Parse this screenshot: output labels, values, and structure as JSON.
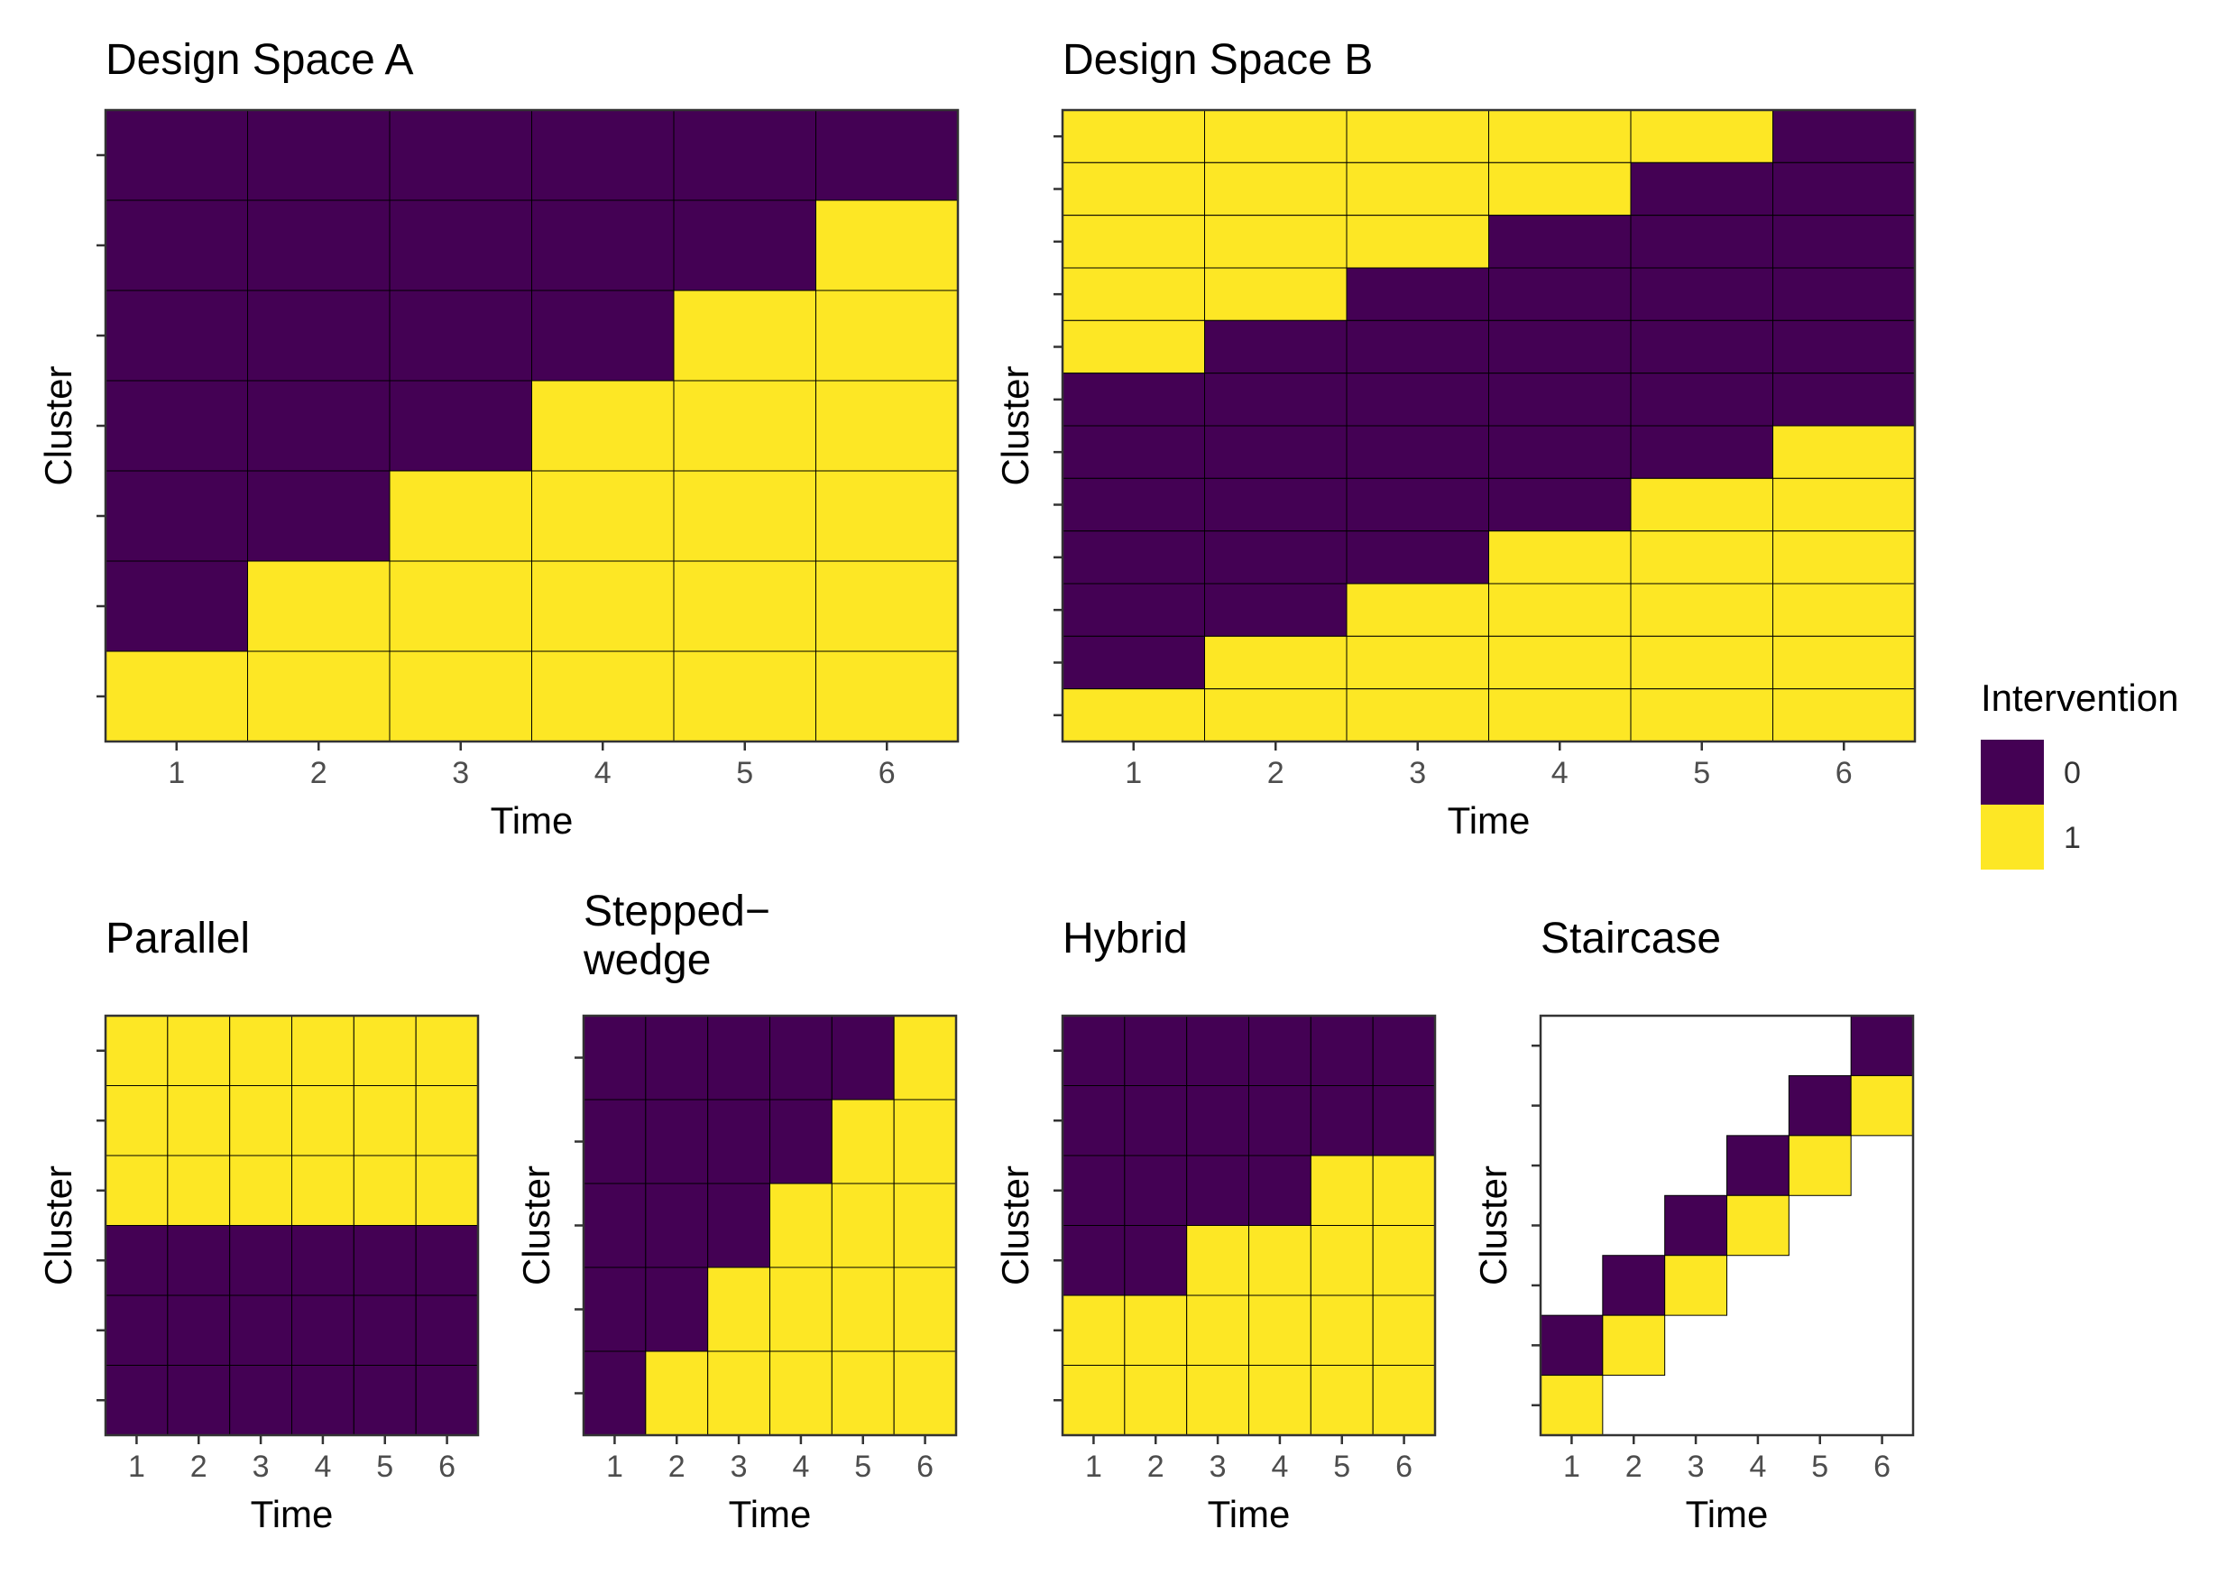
{
  "figure": {
    "legend": {
      "title": "Intervention",
      "items": [
        {
          "label": "0",
          "color": "#440154"
        },
        {
          "label": "1",
          "color": "#FDE725"
        }
      ]
    }
  },
  "chart_data": [
    {
      "type": "heatmap",
      "title": "Design Space A",
      "xlabel": "Time",
      "ylabel": "Cluster",
      "x": [
        "1",
        "2",
        "3",
        "4",
        "5",
        "6"
      ],
      "rows_top_to_bottom": [
        [
          0,
          0,
          0,
          0,
          0,
          0
        ],
        [
          0,
          0,
          0,
          0,
          0,
          1
        ],
        [
          0,
          0,
          0,
          0,
          1,
          1
        ],
        [
          0,
          0,
          0,
          1,
          1,
          1
        ],
        [
          0,
          0,
          1,
          1,
          1,
          1
        ],
        [
          0,
          1,
          1,
          1,
          1,
          1
        ],
        [
          1,
          1,
          1,
          1,
          1,
          1
        ]
      ]
    },
    {
      "type": "heatmap",
      "title": "Design Space B",
      "xlabel": "Time",
      "ylabel": "Cluster",
      "x": [
        "1",
        "2",
        "3",
        "4",
        "5",
        "6"
      ],
      "rows_top_to_bottom": [
        [
          1,
          1,
          1,
          1,
          1,
          0
        ],
        [
          1,
          1,
          1,
          1,
          0,
          0
        ],
        [
          1,
          1,
          1,
          0,
          0,
          0
        ],
        [
          1,
          1,
          0,
          0,
          0,
          0
        ],
        [
          1,
          0,
          0,
          0,
          0,
          0
        ],
        [
          0,
          0,
          0,
          0,
          0,
          0
        ],
        [
          0,
          0,
          0,
          0,
          0,
          1
        ],
        [
          0,
          0,
          0,
          0,
          1,
          1
        ],
        [
          0,
          0,
          0,
          1,
          1,
          1
        ],
        [
          0,
          0,
          1,
          1,
          1,
          1
        ],
        [
          0,
          1,
          1,
          1,
          1,
          1
        ],
        [
          1,
          1,
          1,
          1,
          1,
          1
        ]
      ]
    },
    {
      "type": "heatmap",
      "title": "Parallel",
      "xlabel": "Time",
      "ylabel": "Cluster",
      "x": [
        "1",
        "2",
        "3",
        "4",
        "5",
        "6"
      ],
      "rows_top_to_bottom": [
        [
          1,
          1,
          1,
          1,
          1,
          1
        ],
        [
          1,
          1,
          1,
          1,
          1,
          1
        ],
        [
          1,
          1,
          1,
          1,
          1,
          1
        ],
        [
          0,
          0,
          0,
          0,
          0,
          0
        ],
        [
          0,
          0,
          0,
          0,
          0,
          0
        ],
        [
          0,
          0,
          0,
          0,
          0,
          0
        ]
      ]
    },
    {
      "type": "heatmap",
      "title": "Stepped−\nwedge",
      "xlabel": "Time",
      "ylabel": "Cluster",
      "x": [
        "1",
        "2",
        "3",
        "4",
        "5",
        "6"
      ],
      "rows_top_to_bottom": [
        [
          0,
          0,
          0,
          0,
          0,
          1
        ],
        [
          0,
          0,
          0,
          0,
          1,
          1
        ],
        [
          0,
          0,
          0,
          1,
          1,
          1
        ],
        [
          0,
          0,
          1,
          1,
          1,
          1
        ],
        [
          0,
          1,
          1,
          1,
          1,
          1
        ]
      ]
    },
    {
      "type": "heatmap",
      "title": "Hybrid",
      "xlabel": "Time",
      "ylabel": "Cluster",
      "x": [
        "1",
        "2",
        "3",
        "4",
        "5",
        "6"
      ],
      "rows_top_to_bottom": [
        [
          0,
          0,
          0,
          0,
          0,
          0
        ],
        [
          0,
          0,
          0,
          0,
          0,
          0
        ],
        [
          0,
          0,
          0,
          0,
          1,
          1
        ],
        [
          0,
          0,
          1,
          1,
          1,
          1
        ],
        [
          1,
          1,
          1,
          1,
          1,
          1
        ],
        [
          1,
          1,
          1,
          1,
          1,
          1
        ]
      ]
    },
    {
      "type": "heatmap",
      "title": "Staircase",
      "xlabel": "Time",
      "ylabel": "Cluster",
      "x": [
        "1",
        "2",
        "3",
        "4",
        "5",
        "6"
      ],
      "rows_top_to_bottom": [
        [
          null,
          null,
          null,
          null,
          null,
          0
        ],
        [
          null,
          null,
          null,
          null,
          0,
          1
        ],
        [
          null,
          null,
          null,
          0,
          1,
          null
        ],
        [
          null,
          null,
          0,
          1,
          null,
          null
        ],
        [
          null,
          0,
          1,
          null,
          null,
          null
        ],
        [
          0,
          1,
          null,
          null,
          null,
          null
        ],
        [
          1,
          null,
          null,
          null,
          null,
          null
        ]
      ]
    }
  ]
}
